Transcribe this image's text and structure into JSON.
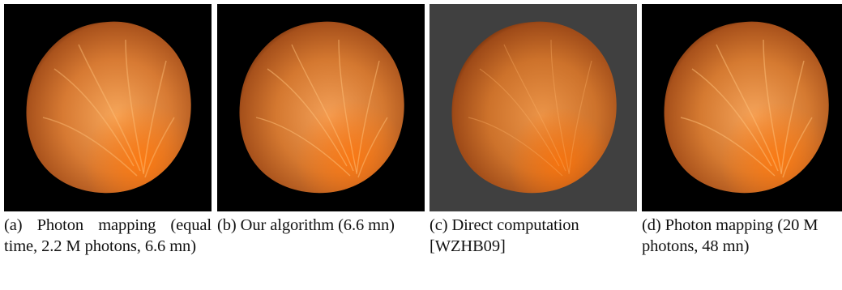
{
  "figure": {
    "panels": [
      {
        "id": "a",
        "background": "#000000",
        "caption": "(a) Photon mapping (equal time, 2.2 M photons, 6.6 mn)"
      },
      {
        "id": "b",
        "background": "#000000",
        "caption": "(b) Our algorithm (6.6 mn)"
      },
      {
        "id": "c",
        "background": "#404040",
        "caption": "(c) Direct computation [WZHB09]"
      },
      {
        "id": "d",
        "background": "#000000",
        "caption": "(d) Photon mapping (20 M photons, 48 mn)"
      }
    ],
    "colors": {
      "sphere_core": "#f29a4a",
      "sphere_mid": "#d97d33",
      "sphere_edge": "#8a3f12",
      "vein_highlight": "#ffc27a"
    }
  }
}
